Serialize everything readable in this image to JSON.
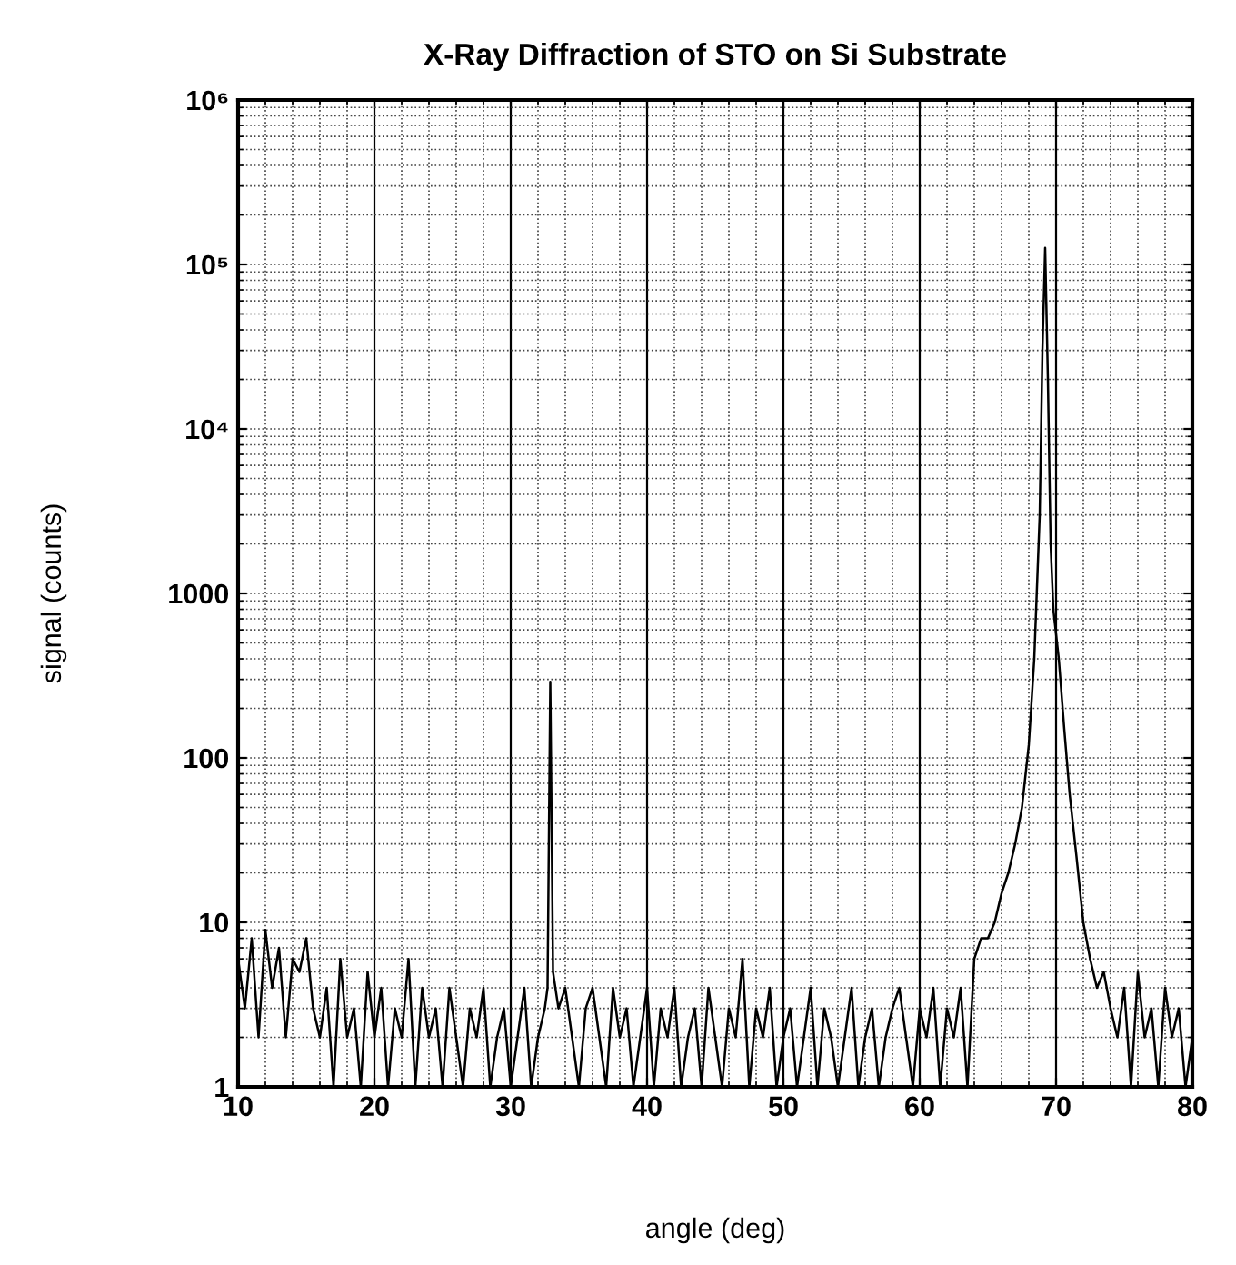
{
  "chart_data": {
    "type": "line",
    "title": "X-Ray Diffraction of STO on Si Substrate",
    "xlabel": "angle (deg)",
    "ylabel": "signal (counts)",
    "log": "y",
    "grid": true,
    "marker": "none",
    "line_style": "solid",
    "xlim": [
      10,
      80
    ],
    "xticks": [
      10,
      20,
      30,
      40,
      50,
      60,
      70,
      80
    ],
    "ylim": [
      1,
      1000000
    ],
    "yticks": [
      1,
      10,
      100,
      1000,
      {
        "value": 10000,
        "label": "10⁴"
      },
      {
        "value": 100000,
        "label": "10⁵"
      },
      {
        "value": 1000000,
        "label": "10⁶"
      }
    ],
    "series": [
      {
        "color": "#000000",
        "x": [
          10,
          10.5,
          11,
          11.5,
          12,
          12.5,
          13,
          13.5,
          14,
          14.5,
          15,
          15.5,
          16,
          16.5,
          17,
          17.5,
          18,
          18.5,
          19,
          19.5,
          20,
          20.5,
          21,
          21.5,
          22,
          22.5,
          23,
          23.5,
          24,
          24.5,
          25,
          25.5,
          26,
          26.5,
          27,
          27.5,
          28,
          28.5,
          29,
          29.5,
          30,
          30.5,
          31,
          31.5,
          32,
          32.5,
          32.7,
          32.9,
          33.1,
          33.5,
          34,
          34.5,
          35,
          35.5,
          36,
          36.5,
          37,
          37.5,
          38,
          38.5,
          39,
          39.5,
          40,
          40.5,
          41,
          41.5,
          42,
          42.5,
          43,
          43.5,
          44,
          44.5,
          45,
          45.5,
          46,
          46.5,
          47,
          47.5,
          48,
          48.5,
          49,
          49.5,
          50,
          50.5,
          51,
          51.5,
          52,
          52.5,
          53,
          53.5,
          54,
          54.5,
          55,
          55.5,
          56,
          56.5,
          57,
          57.5,
          58,
          58.5,
          59,
          59.5,
          60,
          60.5,
          61,
          61.5,
          62,
          62.5,
          63,
          63.5,
          64,
          64.5,
          65,
          65.5,
          66,
          66.5,
          67,
          67.5,
          68,
          68.4,
          68.8,
          69.0,
          69.2,
          69.4,
          69.6,
          69.8,
          70.2,
          70.6,
          71,
          71.5,
          72,
          72.5,
          73,
          73.5,
          74,
          74.5,
          75,
          75.5,
          76,
          76.5,
          77,
          77.5,
          78,
          78.5,
          79,
          79.5,
          80
        ],
        "values": [
          6,
          3,
          8,
          2,
          9,
          4,
          7,
          2,
          6,
          5,
          8,
          3,
          2,
          4,
          1,
          6,
          2,
          3,
          1,
          5,
          2,
          4,
          1,
          3,
          2,
          6,
          1,
          4,
          2,
          3,
          1,
          4,
          2,
          1,
          3,
          2,
          4,
          1,
          2,
          3,
          1,
          2,
          4,
          1,
          2,
          3,
          4,
          290,
          5,
          3,
          4,
          2,
          1,
          3,
          4,
          2,
          1,
          4,
          2,
          3,
          1,
          2,
          4,
          1,
          3,
          2,
          4,
          1,
          2,
          3,
          1,
          4,
          2,
          1,
          3,
          2,
          6,
          1,
          3,
          2,
          4,
          1,
          2,
          3,
          1,
          2,
          4,
          1,
          3,
          2,
          1,
          2,
          4,
          1,
          2,
          3,
          1,
          2,
          3,
          4,
          2,
          1,
          3,
          2,
          4,
          1,
          3,
          2,
          4,
          1,
          6,
          8,
          8,
          10,
          15,
          20,
          30,
          50,
          120,
          400,
          3000,
          30000,
          126000,
          20000,
          2000,
          800,
          400,
          150,
          60,
          25,
          10,
          6,
          4,
          5,
          3,
          2,
          4,
          1,
          5,
          2,
          3,
          1,
          4,
          2,
          3,
          1,
          2
        ]
      }
    ]
  }
}
